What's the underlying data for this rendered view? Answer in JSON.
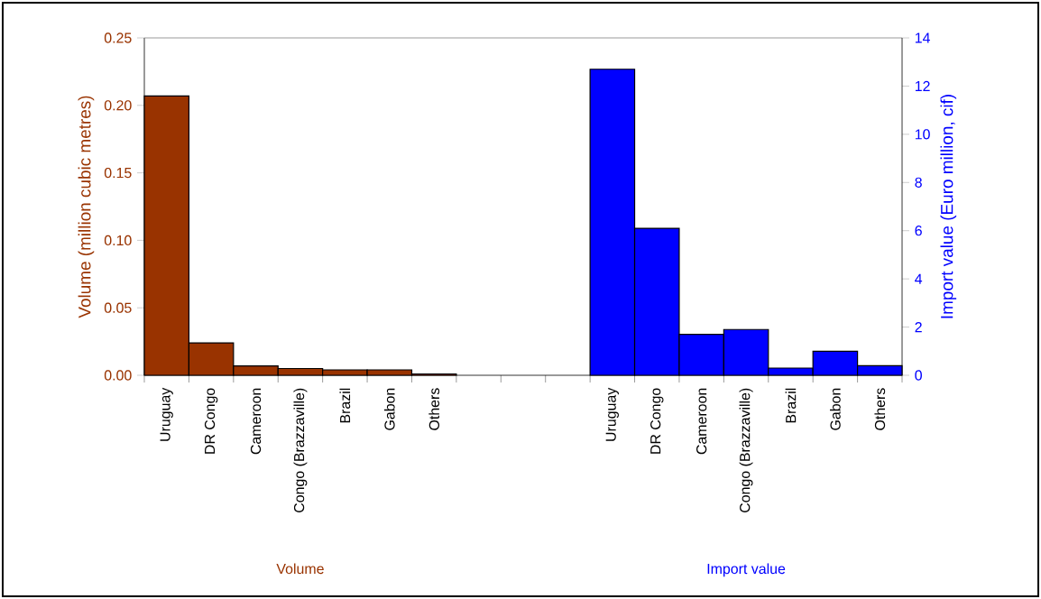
{
  "chart_data": {
    "type": "bar",
    "ylabel": "Volume (million cubic metres)",
    "y2label": "Import value (Euro million, cif)",
    "categories": [
      "Uruguay",
      "DR Congo",
      "Cameroon",
      "Congo (Brazzaville)",
      "Brazil",
      "Gabon",
      "Others",
      null,
      null,
      null,
      "Uruguay",
      "DR Congo",
      "Cameroon",
      "Congo (Brazzaville)",
      "Brazil",
      "Gabon",
      "Others"
    ],
    "series": [
      {
        "name": "Volume",
        "color": "#993300",
        "values": [
          0.207,
          0.024,
          0.007,
          0.005,
          0.004,
          0.004,
          0.001,
          null,
          null,
          null,
          null,
          null,
          null,
          null,
          null,
          null,
          null
        ]
      },
      {
        "name": "Import value",
        "color": "#0000ff",
        "axis": "y2",
        "values": [
          null,
          null,
          null,
          null,
          null,
          null,
          null,
          null,
          null,
          null,
          12.7,
          6.1,
          1.7,
          1.9,
          0.3,
          1.0,
          0.4
        ]
      }
    ],
    "ylim": [
      0,
      0.25
    ],
    "yticks": [
      {
        "value": 0,
        "label": "0.00"
      },
      {
        "value": 0.05,
        "label": "0.05"
      },
      {
        "value": 0.1,
        "label": "0.10"
      },
      {
        "value": 0.15,
        "label": "0.15"
      },
      {
        "value": 0.2,
        "label": "0.20"
      },
      {
        "value": 0.25,
        "label": "0.25"
      }
    ],
    "y2lim": [
      0,
      14
    ],
    "y2ticks": [
      0,
      2,
      4,
      6,
      8,
      10,
      12,
      14
    ]
  }
}
